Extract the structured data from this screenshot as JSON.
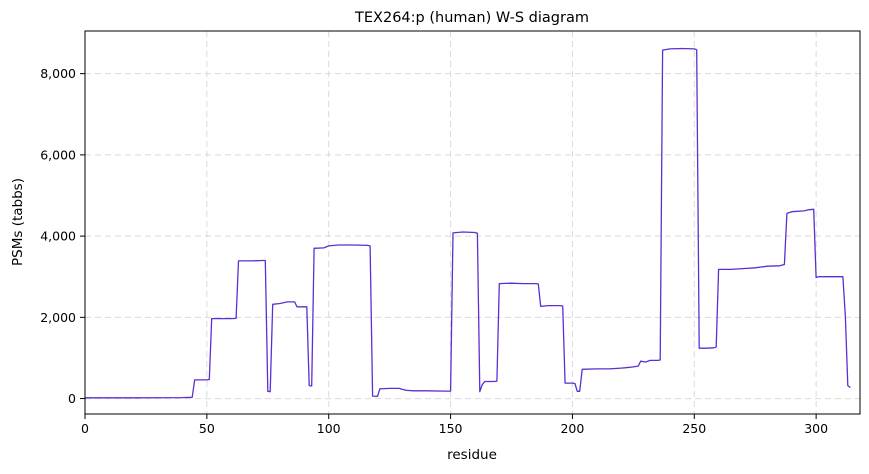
{
  "chart_data": {
    "type": "line",
    "title": "TEX264:p (human) W-S diagram",
    "xlabel": "residue",
    "ylabel": "PSMs (tabbs)",
    "xlim": [
      0,
      318
    ],
    "ylim": [
      -380,
      9050
    ],
    "xticks": [
      0,
      50,
      100,
      150,
      200,
      250,
      300
    ],
    "xtick_labels": [
      "0",
      "50",
      "100",
      "150",
      "200",
      "250",
      "300"
    ],
    "yticks": [
      0,
      2000,
      4000,
      6000,
      8000
    ],
    "ytick_labels": [
      "0",
      "2,000",
      "4,000",
      "6,000",
      "8,000"
    ],
    "grid": true,
    "legend": "none",
    "series": [
      {
        "color": "#5b2fd1",
        "x": [
          0,
          20,
          40,
          44,
          45,
          50,
          51,
          52,
          55,
          60,
          62,
          63,
          68,
          73,
          74,
          75,
          76,
          77,
          80,
          83,
          86,
          87,
          90,
          91,
          92,
          93,
          94,
          98,
          100,
          104,
          110,
          116,
          117,
          118,
          120,
          121,
          125,
          129,
          130,
          132,
          135,
          140,
          148,
          149,
          150,
          151,
          155,
          160,
          161,
          162,
          163,
          164,
          168,
          169,
          170,
          175,
          180,
          185,
          186,
          187,
          190,
          195,
          196,
          197,
          200,
          201,
          202,
          203,
          204,
          210,
          215,
          220,
          222,
          225,
          227,
          228,
          230,
          232,
          235,
          236,
          237,
          240,
          245,
          250,
          251,
          252,
          255,
          258,
          259,
          260,
          265,
          270,
          275,
          280,
          285,
          287,
          288,
          290,
          295,
          297,
          299,
          300,
          301,
          303,
          305,
          310,
          311,
          312,
          313,
          314
        ],
        "y": [
          20,
          20,
          25,
          30,
          460,
          460,
          470,
          1970,
          1970,
          1970,
          1975,
          3390,
          3390,
          3400,
          3400,
          180,
          170,
          2320,
          2340,
          2380,
          2380,
          2260,
          2260,
          2260,
          320,
          310,
          3700,
          3710,
          3760,
          3780,
          3780,
          3770,
          3760,
          60,
          55,
          240,
          250,
          250,
          230,
          200,
          190,
          190,
          185,
          185,
          185,
          4080,
          4100,
          4090,
          4070,
          170,
          340,
          420,
          420,
          430,
          2830,
          2840,
          2830,
          2830,
          2820,
          2270,
          2290,
          2290,
          2280,
          380,
          380,
          370,
          180,
          180,
          720,
          730,
          730,
          750,
          760,
          780,
          800,
          920,
          900,
          940,
          940,
          950,
          8580,
          8610,
          8620,
          8610,
          8590,
          1240,
          1240,
          1250,
          1270,
          3180,
          3180,
          3200,
          3220,
          3260,
          3270,
          3300,
          4560,
          4600,
          4620,
          4650,
          4660,
          2980,
          3000,
          3000,
          3000,
          3000,
          3000,
          2000,
          320,
          270
        ]
      }
    ]
  }
}
